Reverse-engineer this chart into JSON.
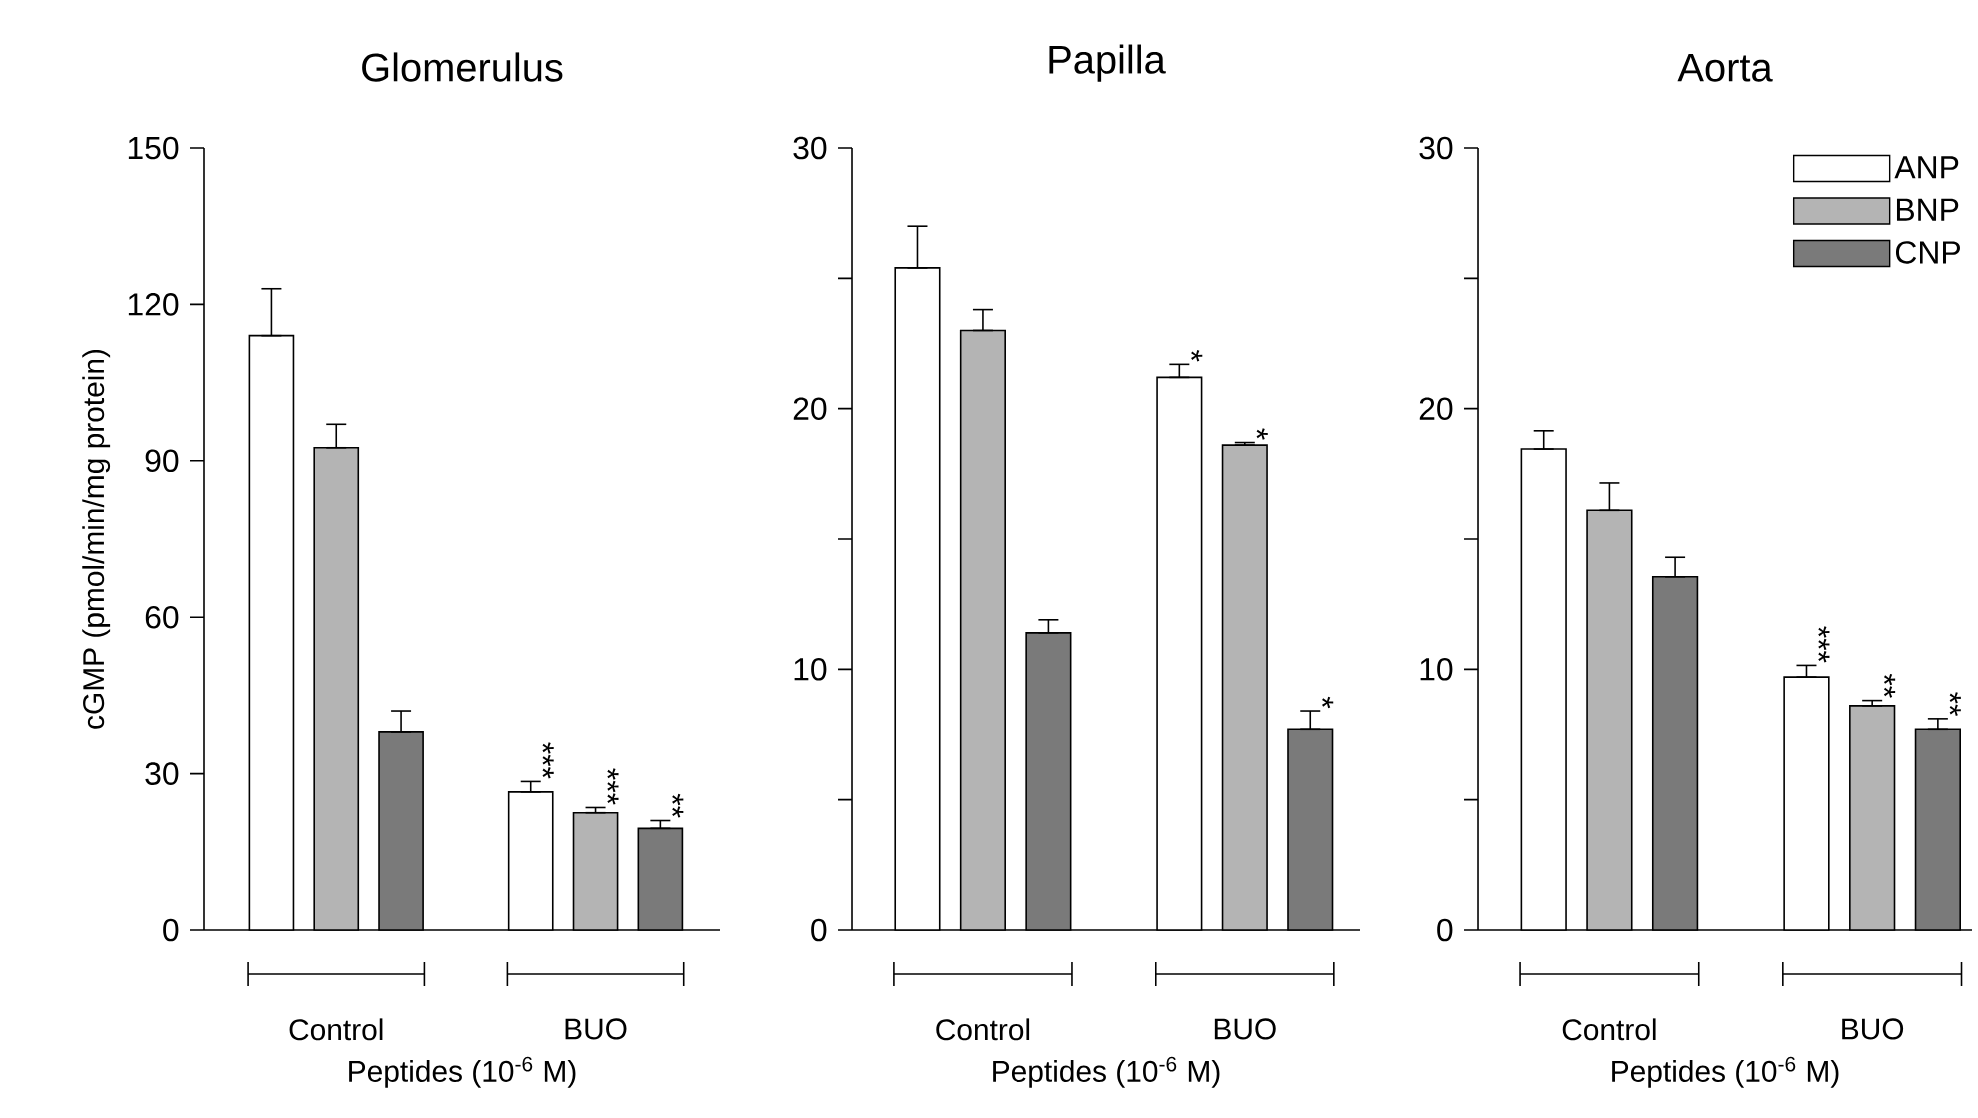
{
  "chart_data": [
    {
      "type": "bar",
      "title": "Glomerulus",
      "xlabel": "Peptides (10$^{-6}$ M)",
      "ylabel": "cGMP (pmol/min/mg protein)",
      "categories": [
        "Control",
        "BUO"
      ],
      "ylim": [
        0,
        150
      ],
      "yticks": [
        0,
        30,
        60,
        90,
        120,
        150
      ],
      "series": [
        {
          "color": "#ffffff",
          "values": [
            114,
            26.5
          ],
          "errors": [
            [
              114,
              123
            ],
            [
              26.5,
              28.5
            ]
          ],
          "value_labels": [
            null,
            "***"
          ]
        },
        {
          "color": "#b4b4b4",
          "values": [
            92.5,
            22.5
          ],
          "errors": [
            [
              92.5,
              97
            ],
            [
              22.5,
              23.5
            ]
          ],
          "value_labels": [
            null,
            "***"
          ]
        },
        {
          "color": "#7a7a7a",
          "values": [
            38,
            19.5
          ],
          "errors": [
            [
              38,
              42
            ],
            [
              19.5,
              21
            ]
          ],
          "value_labels": [
            null,
            "**"
          ]
        }
      ]
    },
    {
      "type": "bar",
      "title": "Papilla",
      "xlabel": "Peptides (10$^{-6}$ M)",
      "categories": [
        "Control",
        "BUO"
      ],
      "ylim": [
        0,
        30
      ],
      "yticks": [
        0,
        {
          "value": 5,
          "label": null
        },
        10,
        {
          "value": 15,
          "label": null
        },
        20,
        {
          "value": 25,
          "label": null
        },
        30
      ],
      "series": [
        {
          "color": "#ffffff",
          "values": [
            25.4,
            21.2
          ],
          "errors": [
            [
              25.4,
              27.0
            ],
            [
              21.2,
              21.7
            ]
          ],
          "value_labels": [
            null,
            "*"
          ]
        },
        {
          "color": "#b4b4b4",
          "values": [
            23.0,
            18.6
          ],
          "errors": [
            [
              23.0,
              23.8
            ],
            [
              18.6,
              18.7
            ]
          ],
          "value_labels": [
            null,
            "*"
          ]
        },
        {
          "color": "#7a7a7a",
          "values": [
            11.4,
            7.7
          ],
          "errors": [
            [
              11.4,
              11.9
            ],
            [
              7.7,
              8.4
            ]
          ],
          "value_labels": [
            null,
            "*"
          ]
        }
      ]
    },
    {
      "type": "bar",
      "title": "Aorta",
      "xlabel": "Peptides (10$^{-6}$ M)",
      "categories": [
        "Control",
        "BUO"
      ],
      "ylim": [
        0,
        30
      ],
      "yticks": [
        0,
        {
          "value": 5,
          "label": null
        },
        10,
        {
          "value": 15,
          "label": null
        },
        20,
        {
          "value": 25,
          "label": null
        },
        30
      ],
      "legend": "top right",
      "series": [
        {
          "name": "ANP",
          "color": "#ffffff",
          "values": [
            18.45,
            9.7
          ],
          "errors": [
            [
              18.45,
              19.15
            ],
            [
              9.7,
              10.15
            ]
          ],
          "value_labels": [
            null,
            "***"
          ]
        },
        {
          "name": "BNP",
          "color": "#b4b4b4",
          "values": [
            16.1,
            8.6
          ],
          "errors": [
            [
              16.1,
              17.15
            ],
            [
              8.6,
              8.8
            ]
          ],
          "value_labels": [
            null,
            "**"
          ]
        },
        {
          "name": "CNP",
          "color": "#7a7a7a",
          "values": [
            13.55,
            7.7
          ],
          "errors": [
            [
              13.55,
              14.3
            ],
            [
              7.7,
              8.1
            ]
          ],
          "value_labels": [
            null,
            "**"
          ]
        }
      ]
    }
  ]
}
